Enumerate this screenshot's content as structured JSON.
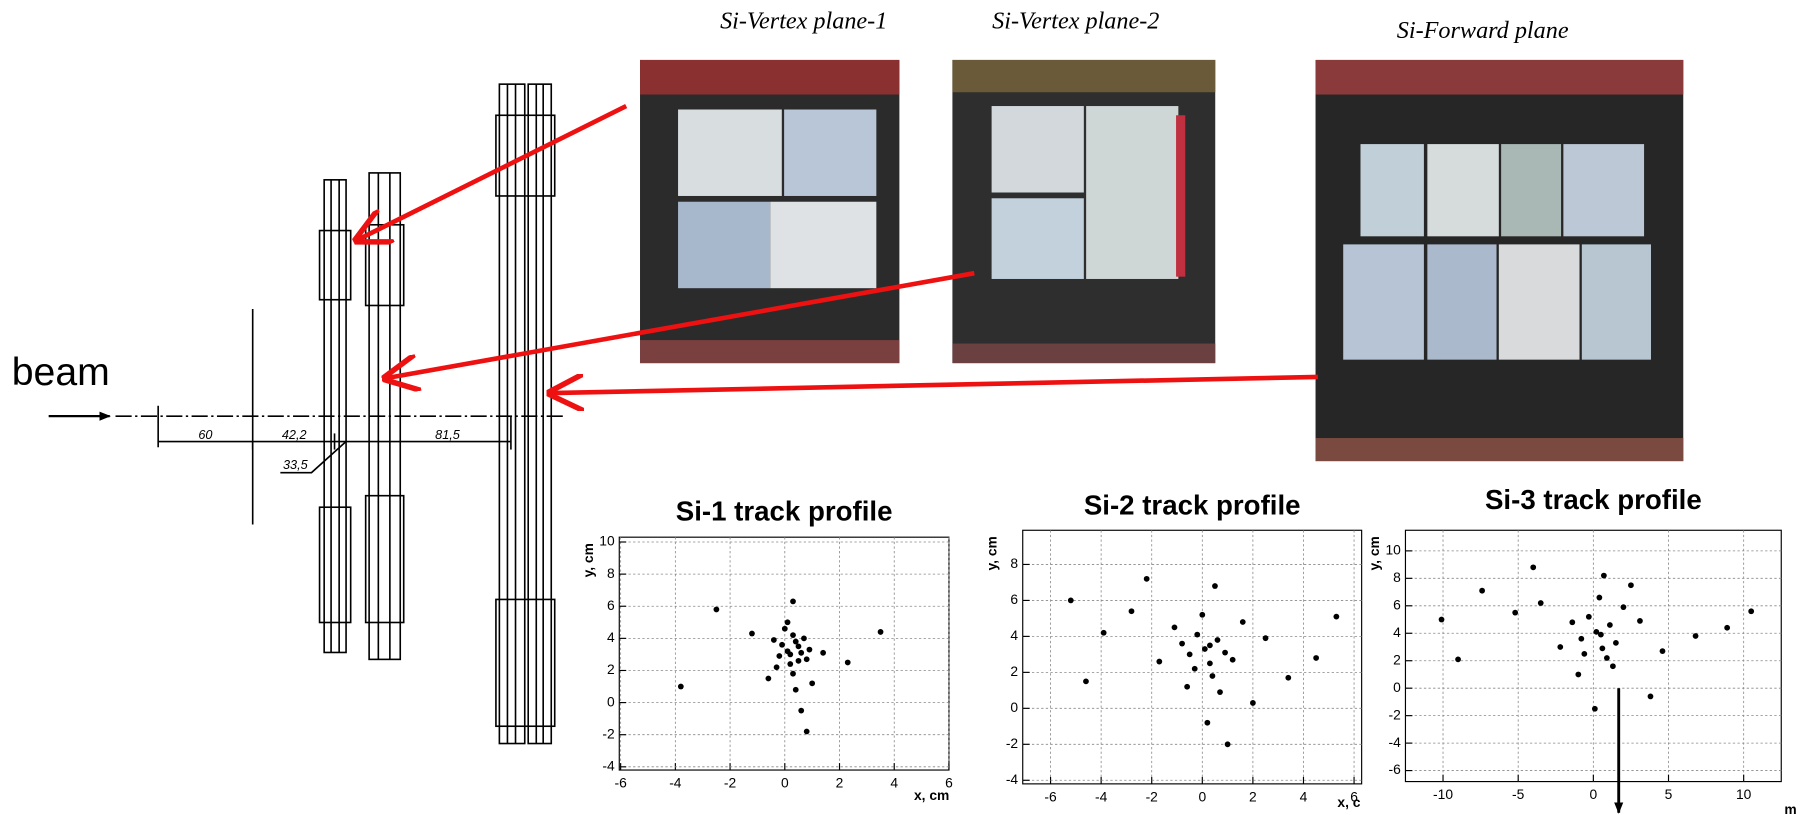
{
  "diagram": {
    "beam_label": "beam",
    "dimensions": [
      "60",
      "42,2",
      "33,5",
      "81,5"
    ]
  },
  "photos": [
    {
      "caption": "Si-Vertex plane-1"
    },
    {
      "caption": "Si-Vertex plane-2"
    },
    {
      "caption": "Si-Forward plane"
    }
  ],
  "chart_data": [
    {
      "type": "scatter",
      "title": "Si-1 track profile",
      "x_label": "x, cm",
      "y_label": "y, cm",
      "color": "#000000",
      "grid": true,
      "xlim": [
        -6.05,
        6
      ],
      "ylim": [
        -4.2,
        10.3
      ],
      "xticks": [
        -6,
        -4,
        -2,
        0,
        2,
        4,
        6
      ],
      "yticks": [
        -4,
        -2,
        0,
        2,
        4,
        6,
        8,
        10
      ],
      "x": [
        0.1,
        0.4,
        -0.2,
        0.6,
        0.3,
        -0.1,
        0.8,
        0.2,
        0.5,
        -0.4,
        0.0,
        0.7,
        0.3,
        0.9,
        -0.3,
        0.2,
        0.5,
        0.1,
        0.4,
        1.4,
        -1.2,
        2.3,
        -2.5,
        0.6,
        1.0,
        -0.6,
        0.3,
        3.5,
        -3.8,
        0.8
      ],
      "y": [
        3.2,
        3.8,
        2.9,
        3.1,
        4.2,
        3.6,
        2.7,
        2.4,
        3.5,
        3.9,
        4.6,
        4.0,
        1.8,
        3.3,
        2.2,
        3.0,
        2.6,
        5.0,
        0.8,
        3.1,
        4.3,
        2.5,
        5.8,
        -0.5,
        1.2,
        1.5,
        6.3,
        4.4,
        1.0,
        -1.8
      ]
    },
    {
      "type": "scatter",
      "title": "Si-2 track profile",
      "x_label": "x, c",
      "y_label": "y, cm",
      "color": "#000000",
      "grid": true,
      "xlim": [
        -7.1,
        6.3
      ],
      "ylim": [
        -4.2,
        9.9
      ],
      "xticks": [
        -6,
        -4,
        -2,
        0,
        2,
        4,
        6
      ],
      "yticks": [
        -4,
        -2,
        0,
        2,
        4,
        6,
        8
      ],
      "x": [
        0.1,
        -0.5,
        0.6,
        0.3,
        -0.2,
        0.9,
        -0.8,
        0.4,
        1.2,
        -1.1,
        0.0,
        0.7,
        -0.3,
        1.6,
        -1.7,
        2.5,
        -2.8,
        3.4,
        -3.9,
        4.5,
        -5.2,
        0.2,
        0.5,
        -0.6,
        1.0,
        -4.6,
        5.3,
        2.0,
        -2.2,
        0.3
      ],
      "y": [
        3.3,
        3.0,
        3.8,
        2.5,
        4.1,
        3.1,
        3.6,
        1.8,
        2.7,
        4.5,
        5.2,
        0.9,
        2.2,
        4.8,
        2.6,
        3.9,
        5.4,
        1.7,
        4.2,
        2.8,
        6.0,
        -0.8,
        6.8,
        1.2,
        -2.0,
        1.5,
        5.1,
        0.3,
        7.2,
        3.5
      ]
    },
    {
      "type": "scatter",
      "title": "Si-3 track profile",
      "x_label": "m",
      "y_label": "y, cm",
      "color": "#000000",
      "grid": true,
      "xlim": [
        -12.5,
        12.5
      ],
      "ylim": [
        -6.8,
        11.5
      ],
      "xticks": [
        -10,
        -5,
        0,
        5,
        10
      ],
      "yticks": [
        -6,
        -4,
        -2,
        0,
        2,
        4,
        6,
        8,
        10
      ],
      "x": [
        0.2,
        -0.8,
        1.1,
        0.6,
        -0.3,
        1.5,
        -1.4,
        0.9,
        2.0,
        -2.2,
        0.4,
        1.3,
        -0.6,
        3.1,
        -3.5,
        4.6,
        -5.2,
        6.8,
        -7.4,
        8.9,
        -10.1,
        0.1,
        0.7,
        -1.0,
        2.5,
        -9.0,
        10.5,
        3.8,
        -4.0,
        0.5
      ],
      "y": [
        4.1,
        3.6,
        4.6,
        2.9,
        5.2,
        3.3,
        4.8,
        2.2,
        5.9,
        3.0,
        6.6,
        1.6,
        2.5,
        4.9,
        6.2,
        2.7,
        5.5,
        3.8,
        7.1,
        4.4,
        5.0,
        -1.5,
        8.2,
        1.0,
        7.5,
        2.1,
        5.6,
        -0.6,
        8.8,
        3.9
      ]
    }
  ]
}
